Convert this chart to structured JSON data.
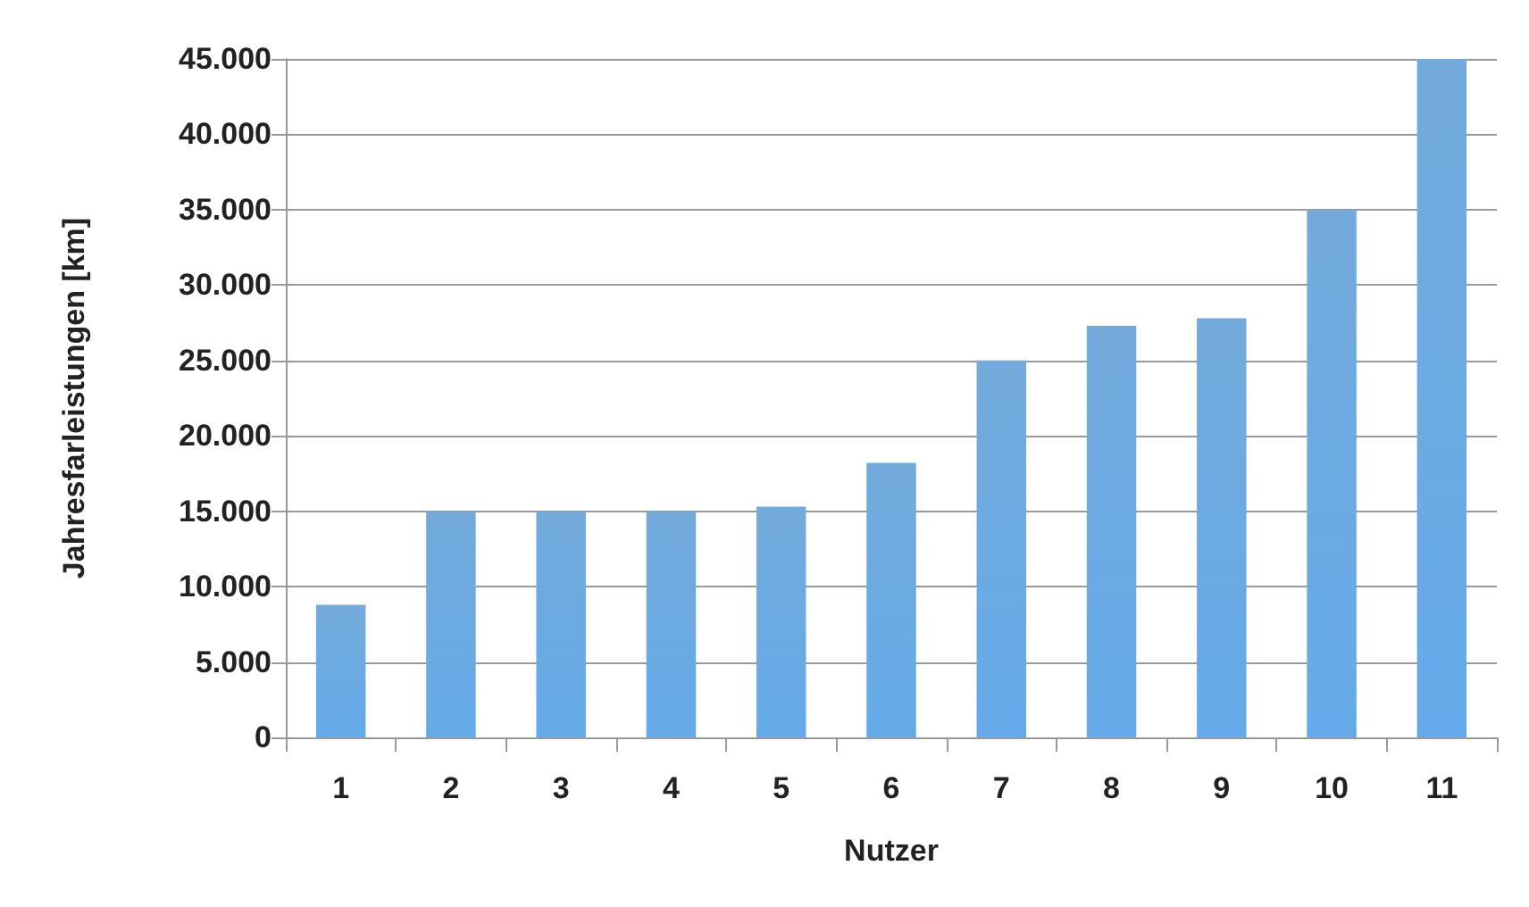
{
  "chart_data": {
    "type": "bar",
    "xlabel": "Nutzer",
    "ylabel": "Jahresfarleistungen [km]",
    "categories": [
      "1",
      "2",
      "3",
      "4",
      "5",
      "6",
      "7",
      "8",
      "9",
      "10",
      "11"
    ],
    "values": [
      8800,
      15000,
      15000,
      15000,
      15300,
      18200,
      25000,
      27300,
      27800,
      35000,
      45000
    ],
    "color": "#5b9bd5",
    "ylim": [
      0,
      45000
    ],
    "yticks": [
      {
        "value": 0,
        "label": "0"
      },
      {
        "value": 5000,
        "label": "5.000"
      },
      {
        "value": 10000,
        "label": "10.000"
      },
      {
        "value": 15000,
        "label": "15.000"
      },
      {
        "value": 20000,
        "label": "20.000"
      },
      {
        "value": 25000,
        "label": "25.000"
      },
      {
        "value": 30000,
        "label": "30.000"
      },
      {
        "value": 35000,
        "label": "35.000"
      },
      {
        "value": 40000,
        "label": "40.000"
      },
      {
        "value": 45000,
        "label": "45.000"
      }
    ],
    "grid": "y"
  }
}
